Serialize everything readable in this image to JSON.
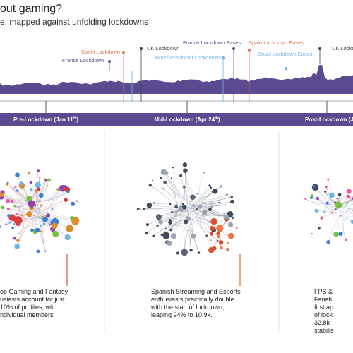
{
  "header": {
    "title": "out gaming?",
    "subtitle": "e, mapped against unfolding lockdowns"
  },
  "annotations": [
    "Spain Lockdown",
    "France Lockdown",
    "UK Lockdown",
    "France Lockdown Eases",
    "Brazil Provincial Lockdowns",
    "Spain Lockdown Eases",
    "Brazil Lockdown Eases",
    "UK Lockdown"
  ],
  "phases": [
    {
      "label": "Pre-Lockdown (Jan 11",
      "sup": "th",
      "close": ")"
    },
    {
      "label": "Mid-Lockdown (Apr 24",
      "sup": "th",
      "close": ")"
    },
    {
      "label": "Post-Lockdown (J"
    }
  ],
  "notes": [
    [
      "op Gaming and Fantasy",
      "usiasts account for just",
      "10% of profiles, with",
      "ndividual members"
    ],
    [
      "Spanish Streaming and Esports",
      "enthusiasts practically double",
      "with the start of lockdown,",
      "leaping 94% to 10.9k."
    ],
    [
      "FPS &",
      "Fanati",
      "first ap",
      "of lock",
      "32.8k",
      "stabilis"
    ]
  ]
}
